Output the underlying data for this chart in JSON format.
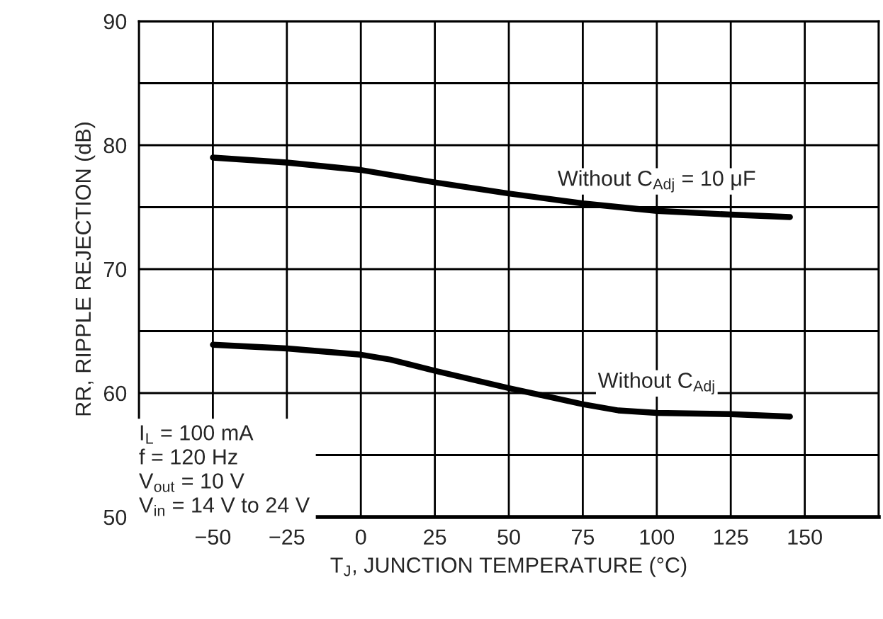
{
  "chart_data": {
    "type": "line",
    "xlabel": "T$_{J}$, JUNCTION TEMPERATURE (°C)",
    "ylabel": "RR, RIPPLE REJECTION (dB)",
    "series": [
      {
        "name": "Without C$_{Adj}$ = 10 μF",
        "color": "#000000",
        "x": [
          -50,
          -25,
          0,
          25,
          50,
          75,
          100,
          125,
          145
        ],
        "values": [
          79.0,
          78.6,
          78.0,
          77.0,
          76.1,
          75.3,
          74.7,
          74.4,
          74.2
        ]
      },
      {
        "name": "Without C$_{Adj}$",
        "color": "#000000",
        "x": [
          -50,
          -25,
          0,
          10,
          25,
          50,
          75,
          87,
          100,
          125,
          145
        ],
        "values": [
          63.9,
          63.6,
          63.1,
          62.7,
          61.8,
          60.4,
          59.1,
          58.6,
          58.4,
          58.3,
          58.1
        ]
      }
    ],
    "xlim": [
      -75,
      175
    ],
    "xticks": [
      {
        "value": -75,
        "label": null
      },
      {
        "value": -50,
        "label": "−50"
      },
      {
        "value": -25,
        "label": "−25"
      },
      0,
      25,
      50,
      75,
      100,
      125,
      150,
      {
        "value": 175,
        "label": null
      }
    ],
    "ylim": [
      50,
      90
    ],
    "yticks": [
      50,
      {
        "value": 55,
        "label": null
      },
      60,
      {
        "value": 65,
        "label": null
      },
      70,
      {
        "value": 75,
        "label": null
      },
      80,
      {
        "value": 85,
        "label": null
      },
      90
    ],
    "grid": true,
    "marker": "none",
    "line_style": "solid",
    "annotations": [
      "I$_{L}$ = 100 mA\nf = 120 Hz\nV$_{out}$ = 10 V\nV$_{in}$ = 14 V to 24 V"
    ]
  }
}
